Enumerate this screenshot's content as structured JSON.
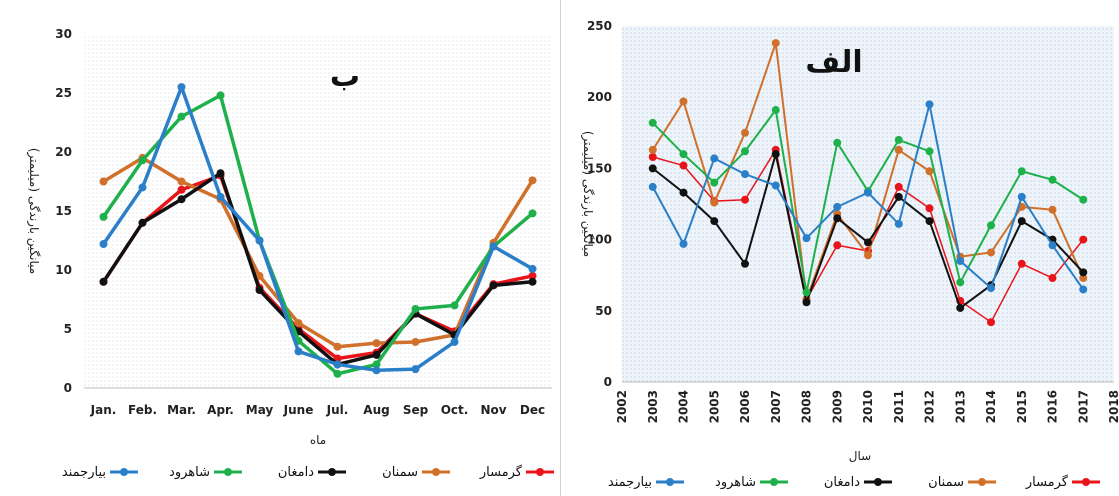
{
  "legend": [
    {
      "name": "گرمسار",
      "color": "#e8141a"
    },
    {
      "name": "سمنان",
      "color": "#d0702a"
    },
    {
      "name": "دامغان",
      "color": "#111111"
    },
    {
      "name": "شاهرود",
      "color": "#1eb04a"
    },
    {
      "name": "بیارجمند",
      "color": "#2a7fc8"
    }
  ],
  "chart_data": [
    {
      "type": "line",
      "panel_label": "ب",
      "xlabel": "ماه",
      "ylabel": "میانگین بارندگی (میلیمتر)",
      "categories": [
        "Jan.",
        "Feb.",
        "Mar.",
        "Apr.",
        "May",
        "June",
        "Jul.",
        "Aug",
        "Sep",
        "Oct.",
        "Nov",
        "Dec"
      ],
      "ylim": [
        0,
        30
      ],
      "yticks": [
        0,
        5,
        10,
        15,
        20,
        25,
        30
      ],
      "background": "dotted",
      "series": [
        {
          "name": "گرمسار",
          "color": "#e8141a",
          "values": [
            9.0,
            14.0,
            16.8,
            18.0,
            8.5,
            5.0,
            2.5,
            3.0,
            6.3,
            4.8,
            8.8,
            9.5
          ]
        },
        {
          "name": "سمنان",
          "color": "#d0702a",
          "values": [
            17.5,
            19.5,
            17.5,
            16.0,
            9.5,
            5.5,
            3.5,
            3.8,
            3.9,
            4.5,
            12.3,
            17.6
          ]
        },
        {
          "name": "دامغان",
          "color": "#111111",
          "values": [
            9.0,
            14.0,
            16.0,
            18.2,
            8.3,
            4.8,
            2.0,
            2.8,
            6.3,
            4.5,
            8.7,
            9.0
          ]
        },
        {
          "name": "شاهرود",
          "color": "#1eb04a",
          "values": [
            14.5,
            19.3,
            23.0,
            24.8,
            12.5,
            4.0,
            1.2,
            2.0,
            6.7,
            7.0,
            12.0,
            14.8
          ]
        },
        {
          "name": "بیارجمند",
          "color": "#2a7fc8",
          "values": [
            12.2,
            17.0,
            25.5,
            16.2,
            12.5,
            3.1,
            2.0,
            1.5,
            1.6,
            3.9,
            12.0,
            10.1
          ]
        }
      ]
    },
    {
      "type": "line",
      "panel_label": "الف",
      "xlabel": "سال",
      "ylabel": "میانگین بارندگی (میلیمتر)",
      "x": [
        2003,
        2004,
        2005,
        2006,
        2007,
        2008,
        2009,
        2010,
        2011,
        2012,
        2013,
        2014,
        2015,
        2016,
        2017
      ],
      "xticks": [
        2002,
        2003,
        2004,
        2005,
        2006,
        2007,
        2008,
        2009,
        2010,
        2011,
        2012,
        2013,
        2014,
        2015,
        2016,
        2017,
        2018
      ],
      "xlim": [
        2002,
        2018
      ],
      "ylim": [
        0,
        250
      ],
      "yticks": [
        0,
        50,
        100,
        150,
        200,
        250
      ],
      "background": "dotted-blue",
      "series": [
        {
          "name": "گرمسار",
          "color": "#e8141a",
          "values": [
            158,
            152,
            127,
            128,
            163,
            58,
            96,
            92,
            137,
            122,
            57,
            42,
            83,
            73,
            100
          ]
        },
        {
          "name": "سمنان",
          "color": "#d0702a",
          "values": [
            163,
            197,
            126,
            175,
            238,
            58,
            118,
            89,
            163,
            148,
            88,
            91,
            123,
            121,
            73
          ]
        },
        {
          "name": "دامغان",
          "color": "#111111",
          "values": [
            150,
            133,
            113,
            83,
            160,
            56,
            115,
            98,
            130,
            113,
            52,
            68,
            113,
            100,
            77
          ]
        },
        {
          "name": "شاهرود",
          "color": "#1eb04a",
          "values": [
            182,
            160,
            140,
            162,
            191,
            63,
            168,
            134,
            170,
            162,
            70,
            110,
            148,
            142,
            128
          ]
        },
        {
          "name": "بیارجمند",
          "color": "#2a7fc8",
          "values": [
            137,
            97,
            157,
            146,
            138,
            101,
            123,
            133,
            111,
            195,
            85,
            66,
            130,
            96,
            65
          ]
        }
      ]
    }
  ]
}
